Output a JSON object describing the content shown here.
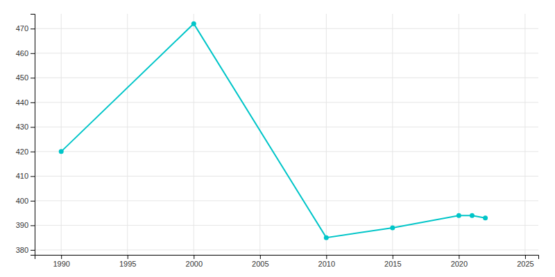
{
  "chart_data": {
    "type": "line",
    "x": [
      1990,
      2000,
      2010,
      2015,
      2020,
      2021,
      2022
    ],
    "values": [
      420,
      472,
      385,
      389,
      394,
      394,
      393
    ],
    "color": "#00C5C8",
    "marker": "circle",
    "xlim": [
      1988,
      2026
    ],
    "ylim": [
      378,
      476
    ],
    "xticks": [
      1990,
      1995,
      2000,
      2005,
      2010,
      2015,
      2020,
      2025
    ],
    "yticks": [
      380,
      390,
      400,
      410,
      420,
      430,
      440,
      450,
      460,
      470
    ],
    "grid": true
  }
}
